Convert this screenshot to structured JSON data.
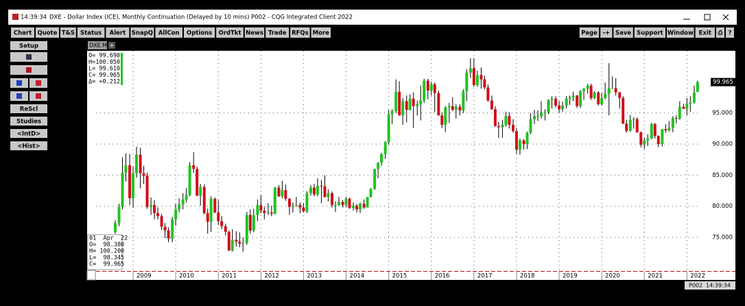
{
  "title_bar": {
    "time": "14:39:34",
    "title": "DXE - Dollar Index (ICE), Monthly Continuation (Delayed by 10 mins)   P002 - CQG Integrated Client 2022"
  },
  "toolbar": {
    "left": [
      "Chart",
      "Quote",
      "T&S",
      "Status",
      "Alert",
      "SnapQ",
      "AllCon",
      "Options",
      "OrdTkt",
      "News",
      "Trade",
      "RFQs",
      "More"
    ],
    "right": [
      "Page",
      "-+",
      "Save",
      "Support",
      "Window",
      "Exit",
      "⎙",
      "?"
    ]
  },
  "side_panel": [
    "Setup",
    "ReScl",
    "Studies",
    "<IntD>",
    "<Hist>"
  ],
  "tab": "DXE.M",
  "quote_box": [
    "O= 99.690",
    "H=100.050",
    "L= 99.610",
    "C= 99.965",
    "Δ= +0.212"
  ],
  "bar_info": [
    "01  Apr  22",
    "O=  98.380",
    "H= 100.200",
    "L=  98.345",
    "C=  99.965"
  ],
  "status": [
    "P002",
    "14:39:34"
  ],
  "chart_data": {
    "type": "candlestick",
    "up_color": "#22c322",
    "down_color": "#d0101a",
    "grid": true,
    "xlim": [
      2008.13,
      2022.3
    ],
    "xticks": [
      2009,
      2010,
      2011,
      2012,
      2013,
      2014,
      2015,
      2016,
      2017,
      2018,
      2019,
      2020,
      2021,
      2022
    ],
    "ylim": [
      69.7,
      105
    ],
    "yticks": [
      {
        "value": 75,
        "label": "75.000"
      },
      {
        "value": 80,
        "label": "80.000"
      },
      {
        "value": 85,
        "label": "85.000"
      },
      {
        "value": 90,
        "label": "90.000"
      },
      {
        "value": 95,
        "label": "95.000"
      }
    ],
    "x": [
      2008.58,
      2008.67,
      2008.75,
      2008.83,
      2008.92,
      2009,
      2009.08,
      2009.17,
      2009.25,
      2009.33,
      2009.42,
      2009.5,
      2009.58,
      2009.67,
      2009.75,
      2009.83,
      2009.92,
      2010,
      2010.08,
      2010.17,
      2010.25,
      2010.33,
      2010.42,
      2010.5,
      2010.58,
      2010.67,
      2010.75,
      2010.83,
      2010.92,
      2011,
      2011.08,
      2011.17,
      2011.25,
      2011.33,
      2011.42,
      2011.5,
      2011.58,
      2011.67,
      2011.75,
      2011.83,
      2011.92,
      2012,
      2012.08,
      2012.17,
      2012.25,
      2012.33,
      2012.42,
      2012.5,
      2012.58,
      2012.67,
      2012.75,
      2012.83,
      2012.92,
      2013,
      2013.08,
      2013.17,
      2013.25,
      2013.33,
      2013.42,
      2013.5,
      2013.58,
      2013.67,
      2013.75,
      2013.83,
      2013.92,
      2014,
      2014.08,
      2014.17,
      2014.25,
      2014.33,
      2014.42,
      2014.5,
      2014.58,
      2014.67,
      2014.75,
      2014.83,
      2014.92,
      2015,
      2015.08,
      2015.17,
      2015.25,
      2015.33,
      2015.42,
      2015.5,
      2015.58,
      2015.67,
      2015.75,
      2015.83,
      2015.92,
      2016,
      2016.08,
      2016.17,
      2016.25,
      2016.33,
      2016.42,
      2016.5,
      2016.58,
      2016.67,
      2016.75,
      2016.83,
      2016.92,
      2017,
      2017.08,
      2017.17,
      2017.25,
      2017.33,
      2017.42,
      2017.5,
      2017.58,
      2017.67,
      2017.75,
      2017.83,
      2017.92,
      2018,
      2018.08,
      2018.17,
      2018.25,
      2018.33,
      2018.42,
      2018.5,
      2018.58,
      2018.67,
      2018.75,
      2018.83,
      2018.92,
      2019,
      2019.08,
      2019.17,
      2019.25,
      2019.33,
      2019.42,
      2019.5,
      2019.58,
      2019.67,
      2019.75,
      2019.83,
      2019.92,
      2020,
      2020.08,
      2020.17,
      2020.25,
      2020.33,
      2020.42,
      2020.5,
      2020.58,
      2020.67,
      2020.75,
      2020.83,
      2020.92,
      2021,
      2021.08,
      2021.17,
      2021.25,
      2021.33,
      2021.42,
      2021.5,
      2021.58,
      2021.67,
      2021.75,
      2021.83,
      2021.92,
      2022,
      2022.08,
      2022.17,
      2022.25
    ],
    "open": [
      75.8,
      77.3,
      79.9,
      85.4,
      86.6,
      81.3,
      85.3,
      88.3,
      85.3,
      84.9,
      79.9,
      80.2,
      78.9,
      78.4,
      76.7,
      76.1,
      74.8,
      77.9,
      79.5,
      80.3,
      81.1,
      81.8,
      86.6,
      86.0,
      81.7,
      83.1,
      78.9,
      77.5,
      81.2,
      79.0,
      77.6,
      76.8,
      75.9,
      72.9,
      74.6,
      74.3,
      74.0,
      74.1,
      78.6,
      76.1,
      78.6,
      80.2,
      79.3,
      78.9,
      79.0,
      78.8,
      83.0,
      81.6,
      82.6,
      81.2,
      79.9,
      80.1,
      80.2,
      79.8,
      79.2,
      82.1,
      83.0,
      81.9,
      83.3,
      83.2,
      81.5,
      82.1,
      80.2,
      80.2,
      80.7,
      80.2,
      81.2,
      79.7,
      80.1,
      79.5,
      80.4,
      79.8,
      81.5,
      82.8,
      86.0,
      87.0,
      88.4,
      90.3,
      94.8,
      95.3,
      98.4,
      94.6,
      96.9,
      95.5,
      97.3,
      96.1,
      96.4,
      97.0,
      100.2,
      98.6,
      99.6,
      98.2,
      94.6,
      93.1,
      95.9,
      96.1,
      95.5,
      96.0,
      95.4,
      98.5,
      101.5,
      102.2,
      99.5,
      101.1,
      100.4,
      99.1,
      97.0,
      95.6,
      92.9,
      92.7,
      93.1,
      94.5,
      93.1,
      92.1,
      89.1,
      90.6,
      90.0,
      91.8,
      94.0,
      94.5,
      94.5,
      95.1,
      95.1,
      97.1,
      97.3,
      96.2,
      95.6,
      96.2,
      97.3,
      97.5,
      97.8,
      96.1,
      98.5,
      98.9,
      99.4,
      97.4,
      98.3,
      96.4,
      97.4,
      98.1,
      99.0,
      99.0,
      98.3,
      97.4,
      93.3,
      92.1,
      93.9,
      94.0,
      91.9,
      89.9,
      90.6,
      90.9,
      93.2,
      91.3,
      90.0,
      92.4,
      92.2,
      92.6,
      94.2,
      94.1,
      96.0,
      95.7,
      96.5,
      96.7,
      98.38
    ],
    "high": [
      77.8,
      80.4,
      87.9,
      88.5,
      88.4,
      86.4,
      89.6,
      89.4,
      86.5,
      85.4,
      81.4,
      81.0,
      79.8,
      78.8,
      77.3,
      76.6,
      78.3,
      80.4,
      81.3,
      82.1,
      82.9,
      87.1,
      88.7,
      86.4,
      83.6,
      83.5,
      79.6,
      81.6,
      81.4,
      81.0,
      78.4,
      77.2,
      76.1,
      76.3,
      76.0,
      75.8,
      75.0,
      79.1,
      79.5,
      79.6,
      81.1,
      81.8,
      79.9,
      80.5,
      80.1,
      83.1,
      83.4,
      84.1,
      83.5,
      81.3,
      80.6,
      81.5,
      80.6,
      80.5,
      82.4,
      83.4,
      83.6,
      84.5,
      84.2,
      85.0,
      82.7,
      82.4,
      80.8,
      81.5,
      81.0,
      81.5,
      81.4,
      80.6,
      80.4,
      80.6,
      81.1,
      81.5,
      82.9,
      86.0,
      87.1,
      88.6,
      90.5,
      95.5,
      95.6,
      100.4,
      100.1,
      97.4,
      97.8,
      98.0,
      98.3,
      97.0,
      99.4,
      100.5,
      100.5,
      100.0,
      99.9,
      98.6,
      95.1,
      96.1,
      96.6,
      97.5,
      96.4,
      96.4,
      98.8,
      102.0,
      103.8,
      103.8,
      101.8,
      102.3,
      101.0,
      99.6,
      97.8,
      96.1,
      93.6,
      93.9,
      95.2,
      95.1,
      94.0,
      92.6,
      90.9,
      90.8,
      92.0,
      95.0,
      95.5,
      95.4,
      96.9,
      95.6,
      97.2,
      97.7,
      97.7,
      96.9,
      96.8,
      97.7,
      97.8,
      98.4,
      97.9,
      98.7,
      99.0,
      99.7,
      99.7,
      98.5,
      98.5,
      98.2,
      99.9,
      103.0,
      100.9,
      100.6,
      98.4,
      97.7,
      93.9,
      94.7,
      94.3,
      94.3,
      92.0,
      91.0,
      91.6,
      93.4,
      93.4,
      91.4,
      92.4,
      93.2,
      93.7,
      94.5,
      94.6,
      96.9,
      96.5,
      97.4,
      97.7,
      99.4,
      100.2
    ],
    "low": [
      75.6,
      76.8,
      79.5,
      84.0,
      80.2,
      79.8,
      84.6,
      82.9,
      83.6,
      79.6,
      78.6,
      77.9,
      77.9,
      76.2,
      74.9,
      74.2,
      74.2,
      76.9,
      79.0,
      79.5,
      80.6,
      81.6,
      85.4,
      81.6,
      80.1,
      78.7,
      75.6,
      75.9,
      78.9,
      77.0,
      76.3,
      75.3,
      72.8,
      72.7,
      73.5,
      73.4,
      72.7,
      73.8,
      75.6,
      75.8,
      77.6,
      78.9,
      77.9,
      78.6,
      78.4,
      78.7,
      81.5,
      81.3,
      80.9,
      78.6,
      79.0,
      79.9,
      78.9,
      79.0,
      78.9,
      81.7,
      81.6,
      81.6,
      80.5,
      81.4,
      80.8,
      79.8,
      79.1,
      80.1,
      79.8,
      79.9,
      79.6,
      79.3,
      79.0,
      78.9,
      79.6,
      79.8,
      81.4,
      82.6,
      84.5,
      86.5,
      87.6,
      89.9,
      93.2,
      95.0,
      94.6,
      93.1,
      93.5,
      95.4,
      92.6,
      94.6,
      93.8,
      96.6,
      97.2,
      97.8,
      95.2,
      94.6,
      92.6,
      91.9,
      93.4,
      95.3,
      94.1,
      94.6,
      95.0,
      96.9,
      100.6,
      99.2,
      99.2,
      98.9,
      98.8,
      96.8,
      95.5,
      92.8,
      91.0,
      91.0,
      92.8,
      92.5,
      91.8,
      88.4,
      88.3,
      89.1,
      89.2,
      91.6,
      93.2,
      93.7,
      94.1,
      93.8,
      94.8,
      95.7,
      95.9,
      95.0,
      95.2,
      95.7,
      96.3,
      96.9,
      95.8,
      95.8,
      97.1,
      98.1,
      97.1,
      97.2,
      96.2,
      96.2,
      97.2,
      94.6,
      98.9,
      97.8,
      95.7,
      93.2,
      91.8,
      92.0,
      92.5,
      91.8,
      89.5,
      89.2,
      89.7,
      90.8,
      90.9,
      89.5,
      89.6,
      91.8,
      92.0,
      91.9,
      93.3,
      93.9,
      95.6,
      94.6,
      95.2,
      96.5,
      98.345
    ],
    "close": [
      77.3,
      79.9,
      85.4,
      86.6,
      81.3,
      85.3,
      88.3,
      85.3,
      84.9,
      79.9,
      80.2,
      78.9,
      78.4,
      76.7,
      76.1,
      74.8,
      77.9,
      79.5,
      80.3,
      81.1,
      81.8,
      86.6,
      86.0,
      81.7,
      83.1,
      78.9,
      77.5,
      81.2,
      79.0,
      77.6,
      76.8,
      75.9,
      72.9,
      74.6,
      74.3,
      74.0,
      74.1,
      78.6,
      76.1,
      78.6,
      80.2,
      79.3,
      78.9,
      79.0,
      78.8,
      83.0,
      81.6,
      82.6,
      81.2,
      79.9,
      80.1,
      80.2,
      79.8,
      79.2,
      82.1,
      83.0,
      81.9,
      83.3,
      83.2,
      81.5,
      82.1,
      80.2,
      80.2,
      80.7,
      80.2,
      81.2,
      79.7,
      80.1,
      79.5,
      80.4,
      79.8,
      81.5,
      82.8,
      86.0,
      87.0,
      88.4,
      90.3,
      94.8,
      95.3,
      98.4,
      94.6,
      96.9,
      95.5,
      97.3,
      96.1,
      96.4,
      97.0,
      100.2,
      98.6,
      99.6,
      98.2,
      94.6,
      93.1,
      95.9,
      96.1,
      95.5,
      96.0,
      95.4,
      98.5,
      101.5,
      102.2,
      99.5,
      101.1,
      100.4,
      99.1,
      97.0,
      95.6,
      92.9,
      92.7,
      93.1,
      94.5,
      93.1,
      92.1,
      89.1,
      90.6,
      90.0,
      91.8,
      94.0,
      94.5,
      94.5,
      95.1,
      95.1,
      97.1,
      97.3,
      96.2,
      95.6,
      96.2,
      97.3,
      97.5,
      97.8,
      96.1,
      98.5,
      98.9,
      99.4,
      97.4,
      98.3,
      96.4,
      97.4,
      98.1,
      99.0,
      99.0,
      98.3,
      97.4,
      93.3,
      92.1,
      93.9,
      94.0,
      91.9,
      89.9,
      90.6,
      90.9,
      93.2,
      91.3,
      90.0,
      92.4,
      92.2,
      92.6,
      94.2,
      94.1,
      96.0,
      95.7,
      96.5,
      96.7,
      98.3,
      99.965
    ]
  }
}
